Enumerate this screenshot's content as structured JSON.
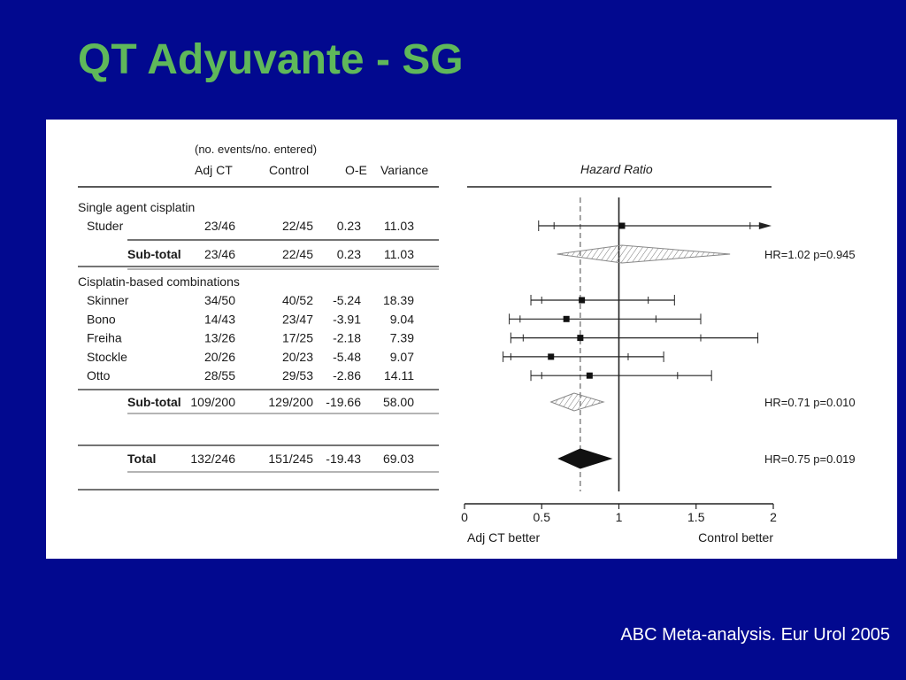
{
  "slide": {
    "title": "QT Adyuvante - SG",
    "citation": "ABC Meta-analysis. Eur Urol 2005"
  },
  "chart_data": {
    "type": "forest",
    "title": "Hazard Ratio",
    "column_group_label": "(no. events/no. entered)",
    "columns": [
      "Adj CT",
      "Control",
      "O-E",
      "Variance"
    ],
    "xlim": [
      0,
      2
    ],
    "x_ticks": [
      0,
      0.5,
      1,
      1.5,
      2
    ],
    "x_tick_labels": [
      "0",
      "0.5",
      "1",
      "1.5",
      "2"
    ],
    "x_label_left": "Adj CT better",
    "x_label_right": "Control better",
    "null_line": 1,
    "pooled_line": 0.75,
    "groups": [
      {
        "label": "Single agent cisplatin",
        "studies": [
          {
            "name": "Studer",
            "adj_ct": "23/46",
            "control": "22/45",
            "oe": "0.23",
            "variance": "11.03",
            "hr": 1.02,
            "ci99": [
              0.48,
              1.95
            ],
            "ci95": [
              0.58,
              1.85
            ],
            "arrow": true
          }
        ],
        "subtotal": {
          "label": "Sub-total",
          "adj_ct": "23/46",
          "control": "22/45",
          "oe": "0.23",
          "variance": "11.03",
          "hr": 1.02,
          "ci": [
            0.6,
            1.72
          ],
          "text": "HR=1.02 p=0.945",
          "style": "hatched"
        }
      },
      {
        "label": "Cisplatin-based combinations",
        "studies": [
          {
            "name": "Skinner",
            "adj_ct": "34/50",
            "control": "40/52",
            "oe": "-5.24",
            "variance": "18.39",
            "hr": 0.76,
            "ci99": [
              0.43,
              1.36
            ],
            "ci95": [
              0.5,
              1.19
            ]
          },
          {
            "name": "Bono",
            "adj_ct": "14/43",
            "control": "23/47",
            "oe": "-3.91",
            "variance": "9.04",
            "hr": 0.66,
            "ci99": [
              0.29,
              1.53
            ],
            "ci95": [
              0.36,
              1.24
            ]
          },
          {
            "name": "Freiha",
            "adj_ct": "13/26",
            "control": "17/25",
            "oe": "-2.18",
            "variance": "7.39",
            "hr": 0.75,
            "ci99": [
              0.3,
              1.9
            ],
            "ci95": [
              0.38,
              1.53
            ]
          },
          {
            "name": "Stockle",
            "adj_ct": "20/26",
            "control": "20/23",
            "oe": "-5.48",
            "variance": "9.07",
            "hr": 0.56,
            "ci99": [
              0.25,
              1.29
            ],
            "ci95": [
              0.3,
              1.06
            ]
          },
          {
            "name": "Otto",
            "adj_ct": "28/55",
            "control": "29/53",
            "oe": "-2.86",
            "variance": "14.11",
            "hr": 0.81,
            "ci99": [
              0.43,
              1.6
            ],
            "ci95": [
              0.5,
              1.38
            ]
          }
        ],
        "subtotal": {
          "label": "Sub-total",
          "adj_ct": "109/200",
          "control": "129/200",
          "oe": "-19.66",
          "variance": "58.00",
          "hr": 0.71,
          "ci": [
            0.56,
            0.9
          ],
          "text": "HR=0.71 p=0.010",
          "style": "hatched"
        }
      }
    ],
    "total": {
      "label": "Total",
      "adj_ct": "132/246",
      "control": "151/245",
      "oe": "-19.43",
      "variance": "69.03",
      "hr": 0.75,
      "ci": [
        0.61,
        0.95
      ],
      "text": "HR=0.75 p=0.019",
      "style": "solid"
    }
  }
}
